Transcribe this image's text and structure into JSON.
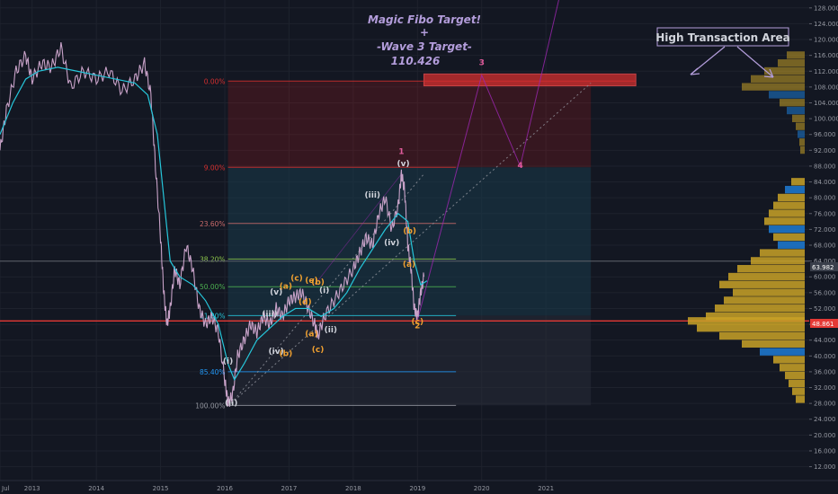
{
  "annotations": {
    "title_line1": "Magic Fibo Target!",
    "title_line2": "+",
    "title_line3": "-Wave 3 Target-",
    "title_line4": "110.426",
    "callout": "High Transaction Area"
  },
  "price_labels": {
    "current": "63.982",
    "support": "48.861"
  },
  "colors": {
    "background": "#131722",
    "price_line": "#c8a2c8",
    "ma_line": "#26c6da",
    "support_line": "#e53935",
    "target_box": "#d32f2f",
    "volume_blue": "#1e7bd4",
    "volume_gold": "#c9a227",
    "wave_white": "#d1d4dc",
    "wave_orange": "#f0a030",
    "wave_pink": "#e05b9b",
    "annotation": "#b39ddb"
  },
  "chart_data": {
    "type": "line",
    "yaxis_ticks": [
      "128.000",
      "124.000",
      "120.000",
      "116.000",
      "112.000",
      "108.000",
      "104.000",
      "100.000",
      "96.000",
      "92.000",
      "88.000",
      "84.000",
      "80.000",
      "76.000",
      "72.000",
      "68.000",
      "64.000",
      "60.000",
      "56.000",
      "52.000",
      "48.000",
      "44.000",
      "40.000",
      "36.000",
      "32.000",
      "28.000",
      "24.000",
      "20.000",
      "16.000",
      "12.000"
    ],
    "ylim": [
      8.5,
      130
    ],
    "xaxis_labels": [
      "Jul",
      "2013",
      "2014",
      "2015",
      "2016",
      "2017",
      "2018",
      "2019",
      "2020",
      "2021"
    ],
    "xaxis_values": [
      2012.5,
      2013,
      2014,
      2015,
      2016,
      2017,
      2018,
      2019,
      2020,
      2021
    ],
    "xlim": [
      2012.5,
      2025.1
    ],
    "price_series": {
      "points": [
        [
          2012.5,
          92
        ],
        [
          2012.6,
          102
        ],
        [
          2012.75,
          112
        ],
        [
          2012.9,
          116
        ],
        [
          2013.0,
          110
        ],
        [
          2013.15,
          114
        ],
        [
          2013.3,
          113
        ],
        [
          2013.45,
          118
        ],
        [
          2013.6,
          108
        ],
        [
          2013.8,
          112
        ],
        [
          2014.0,
          110
        ],
        [
          2014.2,
          112
        ],
        [
          2014.4,
          107
        ],
        [
          2014.6,
          110
        ],
        [
          2014.75,
          114
        ],
        [
          2014.85,
          106
        ],
        [
          2014.92,
          88
        ],
        [
          2015.0,
          70
        ],
        [
          2015.05,
          56
        ],
        [
          2015.1,
          48
        ],
        [
          2015.15,
          52
        ],
        [
          2015.22,
          62
        ],
        [
          2015.3,
          58
        ],
        [
          2015.4,
          68
        ],
        [
          2015.5,
          62
        ],
        [
          2015.6,
          52
        ],
        [
          2015.7,
          48
        ],
        [
          2015.8,
          50
        ],
        [
          2015.9,
          46
        ],
        [
          2016.0,
          34
        ],
        [
          2016.05,
          28
        ],
        [
          2016.12,
          30
        ],
        [
          2016.2,
          40
        ],
        [
          2016.3,
          44
        ],
        [
          2016.4,
          48
        ],
        [
          2016.5,
          46
        ],
        [
          2016.6,
          50
        ],
        [
          2016.7,
          48
        ],
        [
          2016.8,
          52
        ],
        [
          2016.9,
          50
        ],
        [
          2017.0,
          54
        ],
        [
          2017.1,
          55
        ],
        [
          2017.2,
          56
        ],
        [
          2017.3,
          52
        ],
        [
          2017.4,
          48
        ],
        [
          2017.45,
          45
        ],
        [
          2017.55,
          50
        ],
        [
          2017.7,
          54
        ],
        [
          2017.85,
          58
        ],
        [
          2018.0,
          62
        ],
        [
          2018.1,
          66
        ],
        [
          2018.2,
          70
        ],
        [
          2018.3,
          68
        ],
        [
          2018.4,
          76
        ],
        [
          2018.5,
          80
        ],
        [
          2018.6,
          72
        ],
        [
          2018.7,
          78
        ],
        [
          2018.75,
          86
        ],
        [
          2018.8,
          82
        ],
        [
          2018.85,
          68
        ],
        [
          2018.9,
          62
        ],
        [
          2018.95,
          52
        ],
        [
          2019.0,
          50
        ],
        [
          2019.05,
          56
        ],
        [
          2019.1,
          60
        ]
      ],
      "ma": [
        [
          2012.5,
          96
        ],
        [
          2012.7,
          104
        ],
        [
          2012.9,
          110
        ],
        [
          2013.1,
          112
        ],
        [
          2013.4,
          113
        ],
        [
          2013.7,
          112
        ],
        [
          2014.0,
          111
        ],
        [
          2014.3,
          110
        ],
        [
          2014.6,
          109
        ],
        [
          2014.8,
          106
        ],
        [
          2014.95,
          96
        ],
        [
          2015.05,
          80
        ],
        [
          2015.15,
          64
        ],
        [
          2015.3,
          60
        ],
        [
          2015.5,
          58
        ],
        [
          2015.7,
          54
        ],
        [
          2015.9,
          48
        ],
        [
          2016.05,
          38
        ],
        [
          2016.15,
          34
        ],
        [
          2016.3,
          38
        ],
        [
          2016.5,
          44
        ],
        [
          2016.7,
          47
        ],
        [
          2016.9,
          50
        ],
        [
          2017.1,
          52
        ],
        [
          2017.3,
          52
        ],
        [
          2017.5,
          50
        ],
        [
          2017.7,
          52
        ],
        [
          2017.9,
          56
        ],
        [
          2018.1,
          62
        ],
        [
          2018.3,
          67
        ],
        [
          2018.5,
          72
        ],
        [
          2018.7,
          76
        ],
        [
          2018.85,
          74
        ],
        [
          2018.95,
          64
        ],
        [
          2019.05,
          58
        ],
        [
          2019.15,
          59
        ]
      ]
    },
    "fib_levels": [
      {
        "label": "0.00%",
        "price": 109.5,
        "color": "#d32f2f"
      },
      {
        "label": "9.00%",
        "price": 87.7,
        "color": "#d32f2f"
      },
      {
        "label": "23.60%",
        "price": 73.5,
        "color": "#c96a6a"
      },
      {
        "label": "38.20%",
        "price": 64.5,
        "color": "#8bc34a"
      },
      {
        "label": "50.00%",
        "price": 57.5,
        "color": "#4caf50"
      },
      {
        "label": "61.80%",
        "price": 50.2,
        "color": "#26c6da"
      },
      {
        "label": "85.40%",
        "price": 36.0,
        "color": "#2196f3"
      },
      {
        "label": "100.00%",
        "price": 27.5,
        "color": "#9598a1"
      }
    ],
    "support_price": 48.861,
    "current_price": 63.982,
    "target_price": 110.426,
    "wave_labels": [
      {
        "text": "1",
        "x": 2018.75,
        "y": 91,
        "color": "pink"
      },
      {
        "text": "3",
        "x": 2020.0,
        "y": 113.5,
        "color": "pink"
      },
      {
        "text": "4",
        "x": 2020.6,
        "y": 87.5,
        "color": "pink"
      },
      {
        "text": "2",
        "x": 2019.0,
        "y": 47,
        "color": "orange"
      },
      {
        "text": "(v)",
        "x": 2018.78,
        "y": 88,
        "color": "white"
      },
      {
        "text": "(iii)",
        "x": 2018.3,
        "y": 80,
        "color": "white"
      },
      {
        "text": "(iv)",
        "x": 2018.6,
        "y": 68,
        "color": "white"
      },
      {
        "text": "(i)",
        "x": 2017.55,
        "y": 56,
        "color": "white"
      },
      {
        "text": "(ii)",
        "x": 2017.65,
        "y": 46,
        "color": "white"
      },
      {
        "text": "(v)",
        "x": 2016.8,
        "y": 55.5,
        "color": "white"
      },
      {
        "text": "(iii)",
        "x": 2016.7,
        "y": 50,
        "color": "white"
      },
      {
        "text": "(iv)",
        "x": 2016.8,
        "y": 40.5,
        "color": "white"
      },
      {
        "text": "(i)",
        "x": 2016.05,
        "y": 38,
        "color": "white"
      },
      {
        "text": "(ii)",
        "x": 2016.1,
        "y": 27.5,
        "color": "white"
      },
      {
        "text": "(a)",
        "x": 2016.95,
        "y": 57,
        "color": "orange"
      },
      {
        "text": "(b)",
        "x": 2016.95,
        "y": 40,
        "color": "orange"
      },
      {
        "text": "(c)",
        "x": 2017.12,
        "y": 59,
        "color": "orange"
      },
      {
        "text": "(d)",
        "x": 2017.25,
        "y": 53,
        "color": "orange"
      },
      {
        "text": "(e)",
        "x": 2017.35,
        "y": 58.5,
        "color": "orange"
      },
      {
        "text": "(b)",
        "x": 2017.45,
        "y": 58,
        "color": "orange"
      },
      {
        "text": "(a)",
        "x": 2017.35,
        "y": 45,
        "color": "orange"
      },
      {
        "text": "(c)",
        "x": 2017.45,
        "y": 41,
        "color": "orange"
      },
      {
        "text": "(b)",
        "x": 2018.88,
        "y": 71,
        "color": "orange"
      },
      {
        "text": "(a)",
        "x": 2018.87,
        "y": 62.5,
        "color": "orange"
      },
      {
        "text": "(c)",
        "x": 2019.0,
        "y": 48,
        "color": "orange"
      }
    ],
    "volume_profile_upper": [
      {
        "price": 116,
        "len": 20,
        "c": "gold"
      },
      {
        "price": 114,
        "len": 30,
        "c": "gold"
      },
      {
        "price": 112,
        "len": 45,
        "c": "gold"
      },
      {
        "price": 110,
        "len": 60,
        "c": "gold"
      },
      {
        "price": 108,
        "len": 70,
        "c": "gold"
      },
      {
        "price": 106,
        "len": 40,
        "c": "blue"
      },
      {
        "price": 104,
        "len": 28,
        "c": "gold"
      },
      {
        "price": 102,
        "len": 20,
        "c": "blue"
      },
      {
        "price": 100,
        "len": 14,
        "c": "gold"
      },
      {
        "price": 98,
        "len": 10,
        "c": "gold"
      },
      {
        "price": 96,
        "len": 8,
        "c": "blue"
      },
      {
        "price": 94,
        "len": 6,
        "c": "gold"
      },
      {
        "price": 92,
        "len": 5,
        "c": "gold"
      }
    ],
    "volume_profile_lower": [
      {
        "price": 84,
        "len": 15,
        "c": "gold"
      },
      {
        "price": 82,
        "len": 22,
        "c": "blue"
      },
      {
        "price": 80,
        "len": 30,
        "c": "gold"
      },
      {
        "price": 78,
        "len": 35,
        "c": "gold"
      },
      {
        "price": 76,
        "len": 40,
        "c": "gold"
      },
      {
        "price": 74,
        "len": 45,
        "c": "gold"
      },
      {
        "price": 72,
        "len": 40,
        "c": "blue"
      },
      {
        "price": 70,
        "len": 35,
        "c": "gold"
      },
      {
        "price": 68,
        "len": 30,
        "c": "blue"
      },
      {
        "price": 66,
        "len": 50,
        "c": "gold"
      },
      {
        "price": 64,
        "len": 60,
        "c": "gold"
      },
      {
        "price": 62,
        "len": 75,
        "c": "gold"
      },
      {
        "price": 60,
        "len": 85,
        "c": "gold"
      },
      {
        "price": 58,
        "len": 95,
        "c": "gold"
      },
      {
        "price": 56,
        "len": 80,
        "c": "gold"
      },
      {
        "price": 54,
        "len": 90,
        "c": "gold"
      },
      {
        "price": 52,
        "len": 100,
        "c": "gold"
      },
      {
        "price": 50,
        "len": 110,
        "c": "gold"
      },
      {
        "price": 48.8,
        "len": 130,
        "c": "gold"
      },
      {
        "price": 47,
        "len": 120,
        "c": "gold"
      },
      {
        "price": 45,
        "len": 95,
        "c": "gold"
      },
      {
        "price": 43,
        "len": 70,
        "c": "gold"
      },
      {
        "price": 41,
        "len": 50,
        "c": "blue"
      },
      {
        "price": 39,
        "len": 35,
        "c": "gold"
      },
      {
        "price": 37,
        "len": 28,
        "c": "gold"
      },
      {
        "price": 35,
        "len": 22,
        "c": "gold"
      },
      {
        "price": 33,
        "len": 18,
        "c": "gold"
      },
      {
        "price": 31,
        "len": 14,
        "c": "gold"
      },
      {
        "price": 29,
        "len": 10,
        "c": "gold"
      }
    ]
  }
}
